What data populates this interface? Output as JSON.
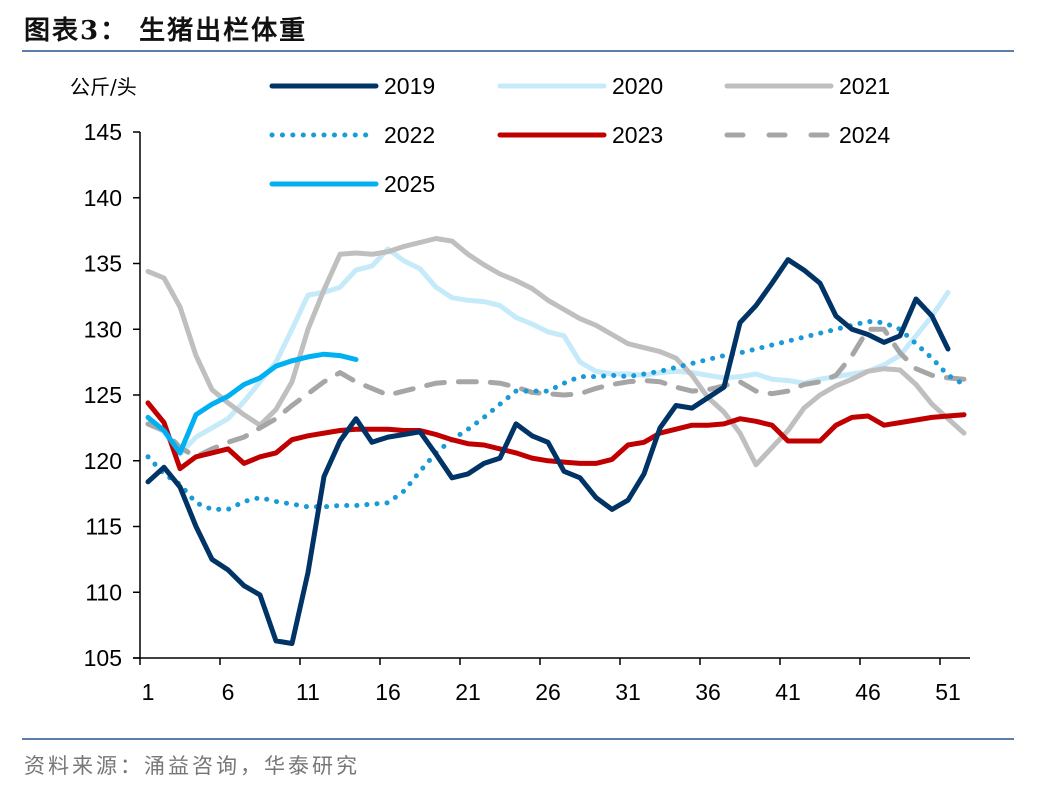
{
  "header": {
    "title": "图表3：  生猪出栏体重"
  },
  "footer": {
    "source": "资料来源：涌益咨询，华泰研究"
  },
  "chart_data": {
    "type": "line",
    "title": "生猪出栏体重",
    "xlabel": "",
    "ylabel": "公斤/头",
    "ylim": [
      105,
      145
    ],
    "yticks": [
      105,
      110,
      115,
      120,
      125,
      130,
      135,
      140,
      145
    ],
    "xrange": [
      1,
      52
    ],
    "xtick_labels": [
      "1",
      "6",
      "11",
      "16",
      "21",
      "26",
      "31",
      "36",
      "41",
      "46",
      "51"
    ],
    "grid": false,
    "legend_position": "top",
    "series": [
      {
        "name": "2019",
        "color": "#003366",
        "style": "solid",
        "values": [
          118.4,
          119.5,
          118.0,
          115.0,
          112.5,
          111.7,
          110.5,
          109.8,
          106.3,
          106.1,
          111.5,
          118.8,
          121.5,
          123.2,
          121.4,
          121.8,
          122.0,
          122.2,
          120.5,
          118.7,
          119.0,
          119.8,
          120.2,
          122.8,
          121.9,
          121.4,
          119.2,
          118.7,
          117.2,
          116.3,
          117.0,
          119.0,
          122.5,
          124.2,
          124.0,
          124.8,
          125.6,
          130.5,
          131.8,
          133.5,
          135.3,
          134.5,
          133.5,
          131.0,
          130.0,
          129.6,
          129.0,
          129.5,
          132.3,
          131.0,
          128.5
        ]
      },
      {
        "name": "2020",
        "color": "#c5eaf9",
        "style": "solid",
        "values": [
          122.8,
          122.2,
          120.5,
          121.8,
          122.5,
          123.2,
          124.5,
          126.0,
          127.5,
          130.0,
          132.6,
          132.8,
          133.2,
          134.5,
          134.8,
          136.1,
          135.2,
          134.6,
          133.2,
          132.4,
          132.2,
          132.1,
          131.8,
          130.9,
          130.4,
          129.8,
          129.5,
          127.5,
          126.8,
          126.6,
          126.6,
          126.5,
          126.7,
          126.8,
          126.7,
          126.5,
          126.3,
          126.4,
          126.6,
          126.2,
          126.1,
          125.9,
          126.2,
          126.4,
          126.6,
          126.8,
          127.3,
          128.0,
          129.5,
          131.0,
          132.8
        ]
      },
      {
        "name": "2021",
        "color": "#bfbfbf",
        "style": "solid",
        "values": [
          134.4,
          133.9,
          131.7,
          128.0,
          125.4,
          124.4,
          123.5,
          122.7,
          123.9,
          126.0,
          130.0,
          133.0,
          135.7,
          135.8,
          135.7,
          135.9,
          136.3,
          136.6,
          136.9,
          136.7,
          135.7,
          134.9,
          134.2,
          133.7,
          133.1,
          132.2,
          131.5,
          130.8,
          130.3,
          129.6,
          128.9,
          128.6,
          128.3,
          127.8,
          126.5,
          124.8,
          123.7,
          122.1,
          119.7,
          121.0,
          122.3,
          124.0,
          125.0,
          125.7,
          126.2,
          126.8,
          127.0,
          126.9,
          125.8,
          124.3,
          123.2,
          122.1
        ]
      },
      {
        "name": "2022",
        "color": "#1a9bd7",
        "style": "dotted",
        "values": [
          120.3,
          119.0,
          118.2,
          116.8,
          116.3,
          116.3,
          116.9,
          117.2,
          116.9,
          116.7,
          116.5,
          116.5,
          116.6,
          116.6,
          116.7,
          116.8,
          117.7,
          119.2,
          120.6,
          121.6,
          122.4,
          123.3,
          124.3,
          125.3,
          125.3,
          125.3,
          125.9,
          126.4,
          126.4,
          126.5,
          126.4,
          126.6,
          126.8,
          127.1,
          127.4,
          127.7,
          128.0,
          128.2,
          128.5,
          128.8,
          129.1,
          129.4,
          129.7,
          130.0,
          130.3,
          130.6,
          130.5,
          130.0,
          128.9,
          127.8,
          126.5,
          125.8
        ]
      },
      {
        "name": "2023",
        "color": "#c00000",
        "style": "solid",
        "values": [
          124.4,
          122.9,
          119.4,
          120.3,
          120.6,
          120.9,
          119.8,
          120.3,
          120.6,
          121.6,
          121.9,
          122.1,
          122.3,
          122.4,
          122.4,
          122.4,
          122.3,
          122.3,
          122.0,
          121.6,
          121.3,
          121.2,
          120.9,
          120.6,
          120.2,
          120.0,
          119.9,
          119.8,
          119.8,
          120.1,
          121.2,
          121.4,
          122.1,
          122.4,
          122.7,
          122.7,
          122.8,
          123.2,
          123.0,
          122.7,
          121.5,
          121.5,
          121.5,
          122.7,
          123.3,
          123.4,
          122.7,
          122.9,
          123.1,
          123.3,
          123.4,
          123.5
        ]
      },
      {
        "name": "2024",
        "color": "#a6a6a6",
        "style": "dashed",
        "values": [
          122.8,
          122.3,
          121.0,
          120.3,
          120.9,
          121.4,
          121.8,
          122.5,
          123.2,
          124.2,
          125.1,
          126.0,
          126.7,
          126.0,
          125.5,
          125.0,
          125.3,
          125.6,
          125.9,
          126.0,
          126.0,
          126.0,
          125.9,
          125.6,
          125.2,
          125.1,
          125.0,
          125.1,
          125.5,
          125.8,
          126.0,
          126.1,
          126.0,
          125.6,
          125.3,
          125.4,
          125.7,
          126.0,
          125.3,
          125.1,
          125.3,
          125.8,
          126.0,
          126.5,
          128.0,
          130.0,
          130.0,
          128.2,
          127.0,
          126.5,
          126.3,
          126.2
        ]
      },
      {
        "name": "2025",
        "color": "#00b0f0",
        "style": "solid",
        "values": [
          123.3,
          122.3,
          120.6,
          123.5,
          124.3,
          124.9,
          125.8,
          126.3,
          127.2,
          127.6,
          127.9,
          128.1,
          128.0,
          127.7
        ]
      }
    ]
  }
}
